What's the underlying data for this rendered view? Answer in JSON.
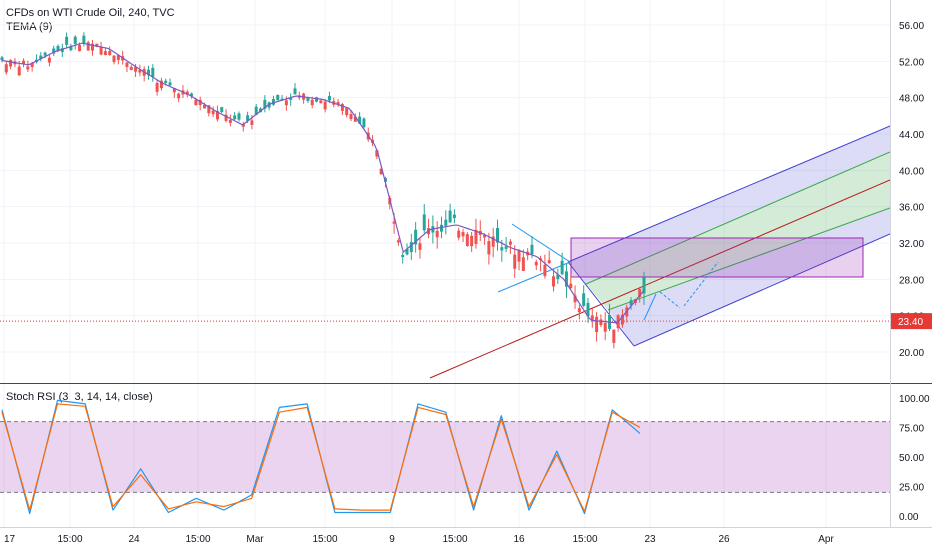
{
  "header": {
    "title": "CFDs on WTI Crude Oil, 240, TVC",
    "indicator": "TEMA (9)"
  },
  "colors": {
    "up": "#26a69a",
    "down": "#ef5350",
    "tema": "#7e57c2",
    "rsi_k": "#2196f3",
    "rsi_d": "#ff6d00",
    "pitch_outer": "#3f3fd1",
    "pitch_inner": "#3aa64a",
    "pitch_median": "#b71c1c",
    "price_line": "#e53935",
    "rect": "#9c27b0"
  },
  "price_axis": {
    "ticks": [
      "56.00",
      "52.00",
      "48.00",
      "44.00",
      "40.00",
      "36.00",
      "32.00",
      "28.00",
      "24.00",
      "20.00"
    ],
    "last_price": "23.40"
  },
  "time_axis": {
    "labels": [
      "17",
      "15:00",
      "24",
      "15:00",
      "Mar",
      "15:00",
      "9",
      "15:00",
      "16",
      "15:00",
      "23",
      "26",
      "Apr"
    ]
  },
  "stoch_rsi": {
    "title": "Stoch RSI (3, 3, 14, 14, close)",
    "ticks": [
      "100.00",
      "75.00",
      "50.00",
      "25.00",
      "0.00"
    ],
    "upper_band": 80,
    "lower_band": 20
  },
  "chart_data": [
    {
      "type": "candlestick",
      "title": "CFDs on WTI Crude Oil, 240, TVC",
      "ylim": [
        18,
        58
      ],
      "series": [
        {
          "name": "TEMA (9)",
          "type": "line",
          "x": [
            "Feb 17",
            "Feb 18",
            "Feb 19",
            "Feb 20",
            "Feb 21",
            "Feb 24",
            "Feb 25",
            "Feb 26",
            "Feb 27",
            "Feb 28",
            "Mar 2",
            "Mar 3",
            "Mar 4",
            "Mar 5",
            "Mar 6",
            "Mar 9",
            "Mar 10",
            "Mar 11",
            "Mar 12",
            "Mar 13",
            "Mar 16",
            "Mar 17",
            "Mar 18",
            "Mar 19",
            "Mar 20"
          ],
          "values": [
            52.1,
            51.6,
            53.1,
            54.0,
            53.4,
            51.4,
            49.6,
            48.3,
            46.5,
            45.0,
            47.3,
            48.2,
            47.8,
            46.8,
            42.5,
            31.0,
            33.5,
            34.0,
            33.0,
            31.5,
            30.5,
            28.0,
            23.5,
            23.2,
            26.8
          ]
        }
      ],
      "close_price": 23.4
    },
    {
      "type": "line",
      "title": "Stoch RSI (3, 3, 14, 14, close)",
      "ylim": [
        0,
        100
      ],
      "series": [
        {
          "name": "K",
          "values": [
            90,
            2,
            98,
            95,
            5,
            40,
            3,
            15,
            5,
            18,
            92,
            95,
            3,
            3,
            3,
            95,
            88,
            5,
            85,
            5,
            55,
            2,
            90,
            70
          ]
        },
        {
          "name": "D",
          "values": [
            88,
            5,
            95,
            93,
            8,
            35,
            6,
            12,
            8,
            15,
            88,
            92,
            6,
            5,
            5,
            92,
            86,
            8,
            82,
            8,
            52,
            4,
            88,
            75
          ]
        }
      ]
    }
  ]
}
